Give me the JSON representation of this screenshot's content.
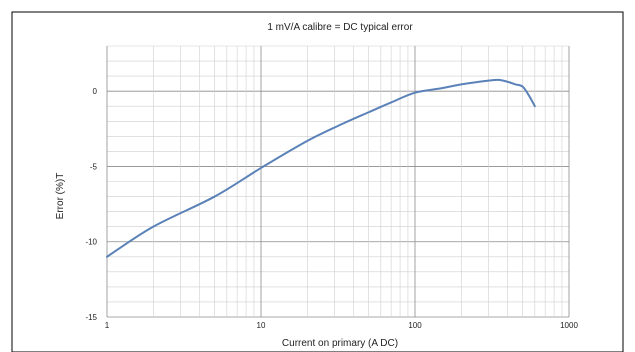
{
  "chart_data": {
    "type": "line",
    "title": "1 mV/A calibre = DC typical error",
    "xlabel": "Current on primary (A DC)",
    "ylabel": "Error (%)T",
    "x_scale": "log",
    "xlim": [
      1,
      1000
    ],
    "ylim": [
      -15,
      3
    ],
    "x_ticks": [
      "1",
      "10",
      "100",
      "1000"
    ],
    "y_ticks": [
      "0",
      "-5",
      "-10",
      "-15"
    ],
    "grid": true,
    "legend": "none",
    "series": [
      {
        "color": "#5b82b8",
        "points": [
          [
            1,
            -11.0
          ],
          [
            2,
            -9.0
          ],
          [
            5,
            -7.0
          ],
          [
            10,
            -5.1
          ],
          [
            20,
            -3.3
          ],
          [
            35,
            -2.1
          ],
          [
            50,
            -1.4
          ],
          [
            70,
            -0.75
          ],
          [
            100,
            -0.1
          ],
          [
            150,
            0.2
          ],
          [
            200,
            0.45
          ],
          [
            300,
            0.7
          ],
          [
            350,
            0.75
          ],
          [
            400,
            0.62
          ],
          [
            450,
            0.45
          ],
          [
            500,
            0.3
          ],
          [
            550,
            -0.3
          ],
          [
            600,
            -1.0
          ]
        ]
      }
    ]
  }
}
